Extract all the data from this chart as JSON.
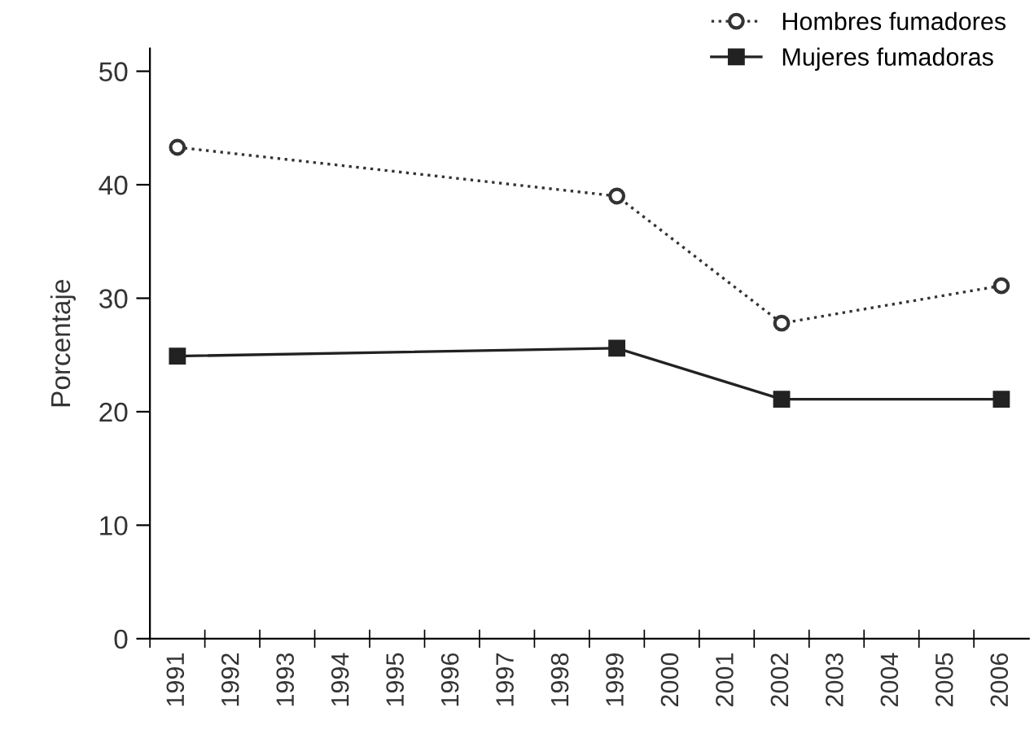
{
  "chart_data": {
    "type": "line",
    "ylabel": "Porcentaje",
    "categories": [
      "1991",
      "1992",
      "1993",
      "1994",
      "1995",
      "1996",
      "1997",
      "1998",
      "1999",
      "2000",
      "2001",
      "2002",
      "2003",
      "2004",
      "2005",
      "2006"
    ],
    "ylim": [
      0,
      52
    ],
    "yticks": [
      0,
      10,
      20,
      30,
      40,
      50
    ],
    "grid": false,
    "legend": "top right",
    "series": [
      {
        "name": "Hombres fumadores",
        "color": "#333333",
        "marker": "circle",
        "line_style": "dotted",
        "values": [
          43.3,
          null,
          null,
          null,
          null,
          null,
          null,
          null,
          39.0,
          null,
          null,
          27.8,
          null,
          null,
          null,
          31.1
        ]
      },
      {
        "name": "Mujeres fumadoras",
        "color": "#222222",
        "marker": "square",
        "line_style": "solid",
        "values": [
          24.9,
          null,
          null,
          null,
          null,
          null,
          null,
          null,
          25.6,
          null,
          null,
          21.1,
          null,
          null,
          null,
          21.1
        ]
      }
    ]
  }
}
